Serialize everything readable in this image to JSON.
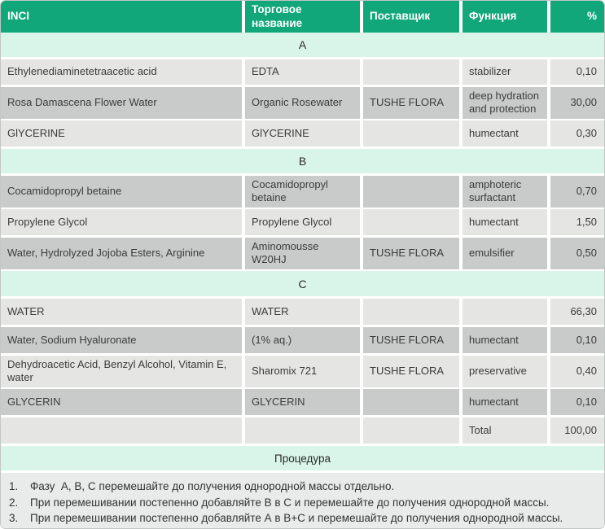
{
  "table": {
    "columns": [
      "INCI",
      "Торговое название",
      "Поставщик",
      "Функция",
      "%"
    ],
    "sections": {
      "a": "A",
      "b": "B",
      "c": "C"
    },
    "rows": [
      {
        "inci": "Ethylenediaminetetraacetic acid",
        "trade": "EDTA",
        "supplier": "",
        "function": "stabilizer",
        "percent": "0,10"
      },
      {
        "inci": "Rosa Damascena Flower Water",
        "trade": "Organic Rosewater",
        "supplier": "TUSHE FLORA",
        "function": "deep hydration and protection",
        "percent": "30,00"
      },
      {
        "inci": "GlYCERINE",
        "trade": "GlYCERINE",
        "supplier": "",
        "function": "humectant",
        "percent": "0,30"
      },
      {
        "inci": "Cocamidopropyl betaine",
        "trade": "Cocamidopropyl betaine",
        "supplier": "",
        "function": "amphoteric surfactant",
        "percent": "0,70"
      },
      {
        "inci": "Propylene Glycol",
        "trade": "Propylene Glycol",
        "supplier": "",
        "function": "humectant",
        "percent": "1,50"
      },
      {
        "inci": "Water, Hydrolyzed Jojoba Esters, Arginine",
        "trade": "Aminomousse W20HJ",
        "supplier": "TUSHE FLORA",
        "function": "emulsifier",
        "percent": "0,50"
      },
      {
        "inci": "WATER",
        "trade": "WATER",
        "supplier": "",
        "function": "",
        "percent": "66,30"
      },
      {
        "inci": "Water, Sodium Hyaluronate",
        "trade": "(1% aq.)",
        "supplier": "TUSHE FLORA",
        "function": "humectant",
        "percent": "0,10"
      },
      {
        "inci": "Dehydroacetic Acid, Benzyl Alcohol, Vitamin E, water",
        "trade": "Sharomix 721",
        "supplier": "TUSHE FLORA",
        "function": "preservative",
        "percent": "0,40"
      },
      {
        "inci": "GLYCERIN",
        "trade": "GLYCERIN",
        "supplier": "",
        "function": "humectant",
        "percent": "0,10"
      },
      {
        "inci": "",
        "trade": "",
        "supplier": "",
        "function": "Total",
        "percent": "100,00"
      }
    ]
  },
  "procedure": {
    "title": "Процедура",
    "steps": [
      {
        "num": "1.",
        "text": "Фазу  А, В, С перемешайте до получения однородной массы отдельно."
      },
      {
        "num": "2.",
        "text": "При перемешивании постепенно добавляйте В в С и перемешайте до получения однородной массы."
      },
      {
        "num": "3.",
        "text": "При перемешивании постепенно добавляйте А в В+С и перемешайте до получения однородной массы."
      }
    ]
  },
  "colors": {
    "header_green": "#12A67B",
    "section_mint": "#D9F5E9",
    "row_light": "#E5E5E4",
    "row_dark": "#C9CBCA",
    "procedure_bg": "#E9EBEA"
  }
}
